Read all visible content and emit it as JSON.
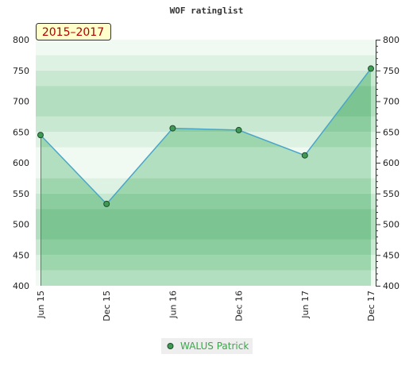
{
  "chart_data": {
    "type": "area",
    "title": "WOF ratinglist",
    "badge": "2015–2017",
    "categories": [
      "Jun 15",
      "Dec 15",
      "Jun 16",
      "Dec 16",
      "Jun 17",
      "Dec 17"
    ],
    "series": [
      {
        "name": "WALUS Patrick",
        "values": [
          645,
          533,
          656,
          653,
          612,
          753
        ]
      }
    ],
    "ylim": [
      400,
      800
    ],
    "yticks": [
      800,
      750,
      700,
      650,
      600,
      550,
      500,
      450,
      400
    ],
    "grid": false,
    "legend_position": "bottom",
    "colors": {
      "area_fill": "#6fbf82",
      "line": "#4aa6c8",
      "marker": "#3f9a55",
      "band_dark": "#b3dcbf",
      "band_light": "#e2f2e6",
      "badge_bg": "#ffffcc"
    }
  }
}
